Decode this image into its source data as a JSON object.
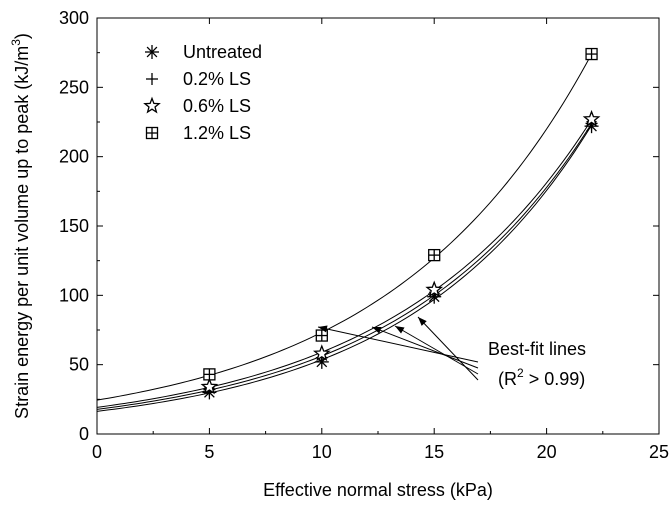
{
  "chart_data": {
    "type": "scatter",
    "title": "",
    "xlabel": "Effective normal stress (kPa)",
    "ylabel_main": "Strain energy per unit volume up to peak (kJ/m",
    "ylabel_sup": "3",
    "ylabel_close": ")",
    "xlim": [
      0,
      25
    ],
    "ylim": [
      0,
      300
    ],
    "x_ticks": [
      0,
      5,
      10,
      15,
      20,
      25
    ],
    "y_ticks": [
      0,
      50,
      100,
      150,
      200,
      250,
      300
    ],
    "grid": false,
    "legend_position": "top-left",
    "x": [
      5,
      10,
      15,
      22
    ],
    "series": [
      {
        "name": "Untreated",
        "marker": "asterisk",
        "values": [
          30,
          52,
          99,
          222
        ]
      },
      {
        "name": "0.2% LS",
        "marker": "plus",
        "values": [
          32,
          55,
          101,
          224
        ]
      },
      {
        "name": "0.6% LS",
        "marker": "star",
        "values": [
          34,
          58,
          104,
          227
        ]
      },
      {
        "name": "1.2% LS",
        "marker": "boxed-plus",
        "values": [
          43,
          71,
          129,
          274
        ]
      }
    ],
    "fit_type": "exponential",
    "annotation": {
      "line1": "Best-fit lines",
      "line2_prefix": "(R",
      "line2_sup": "2",
      "line2_suffix": " > 0.99)"
    }
  }
}
